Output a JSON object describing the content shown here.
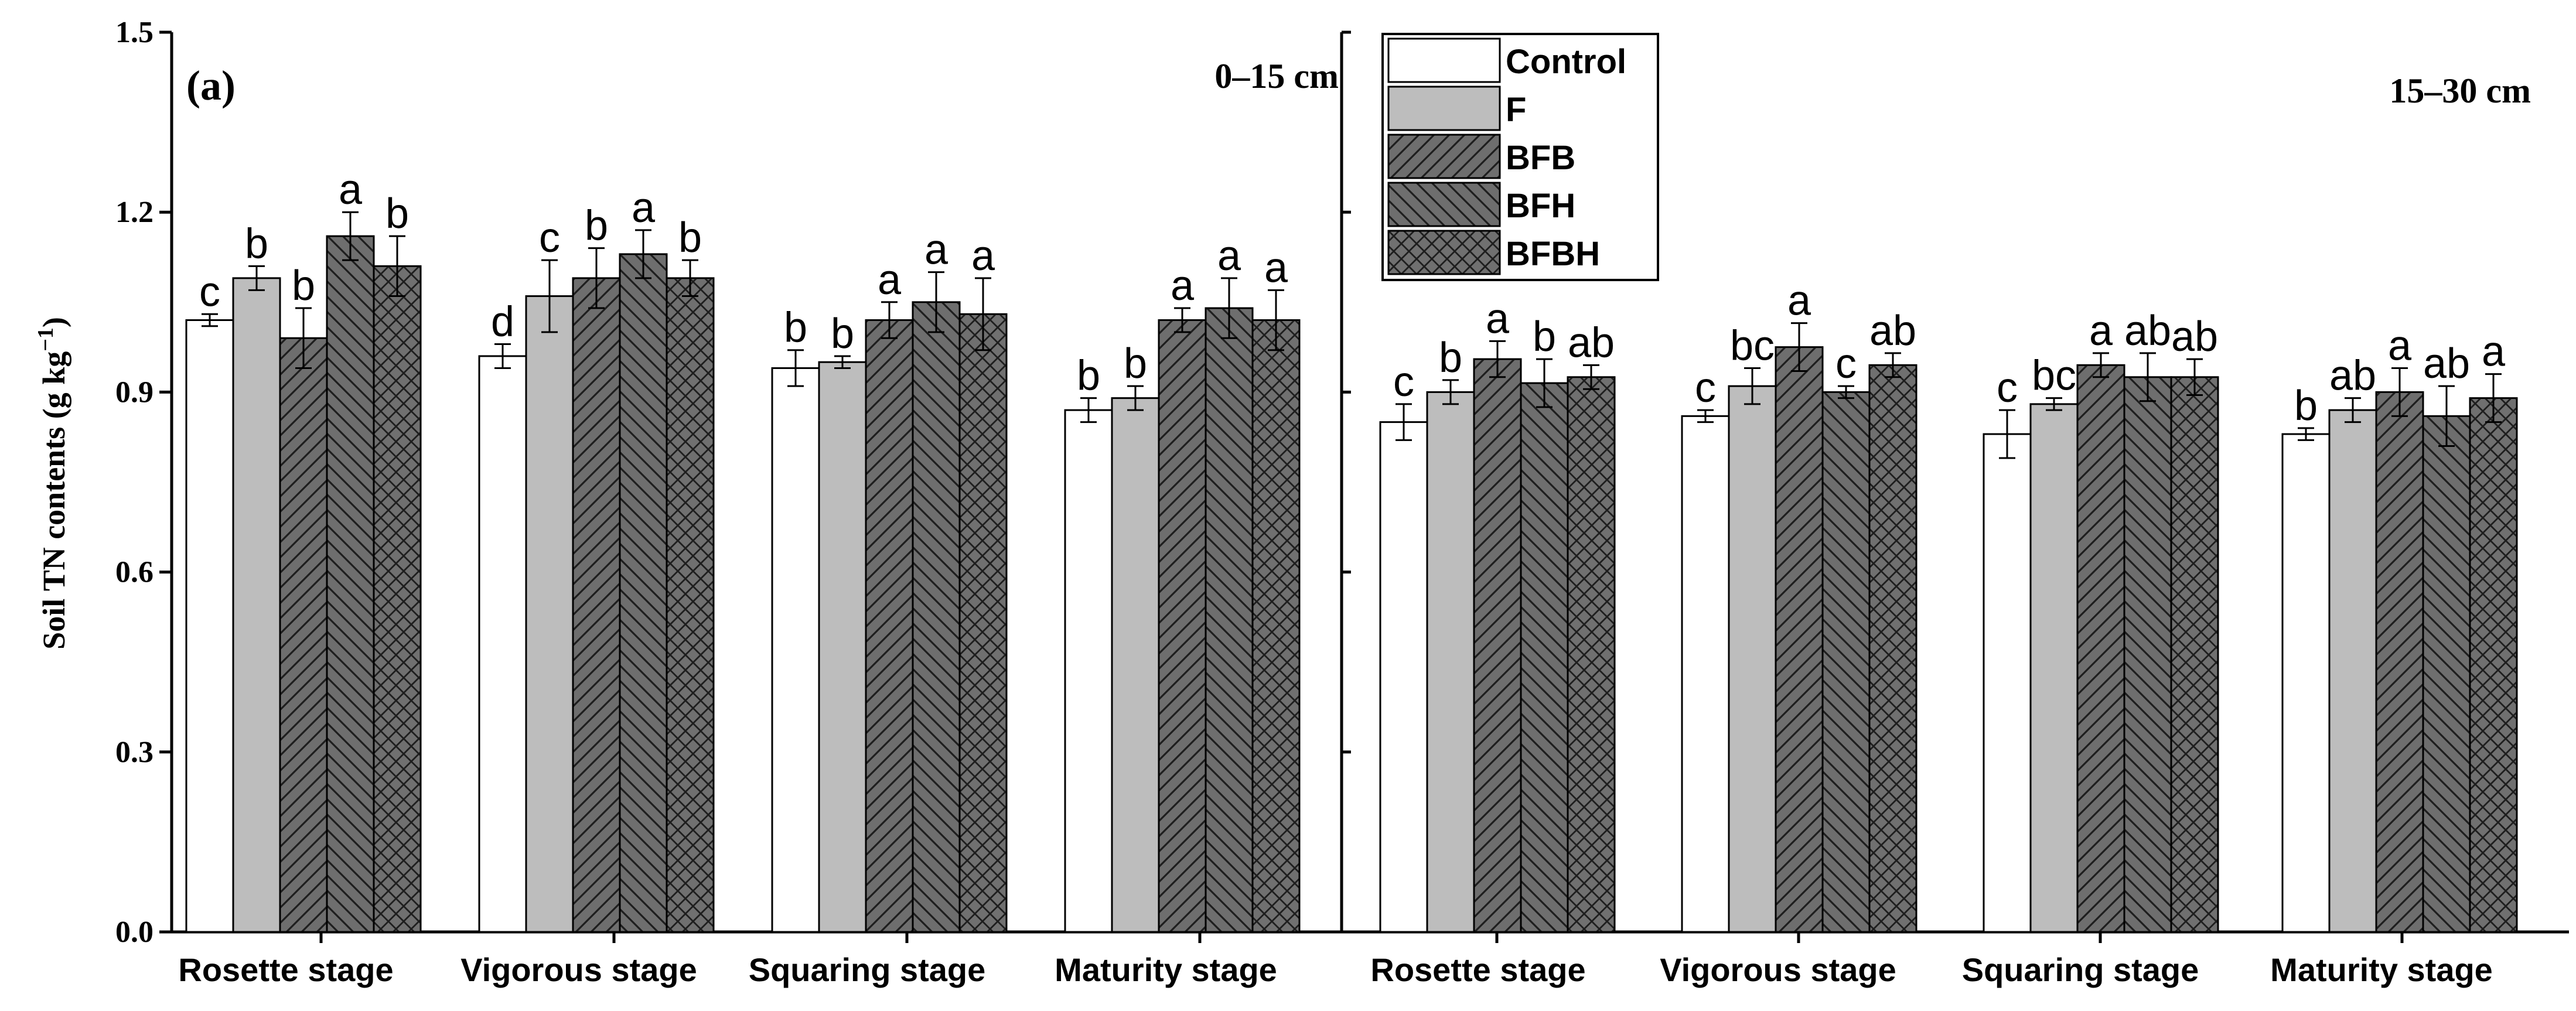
{
  "chart_data": {
    "type": "bar",
    "ylabel": "Soil TN contents (g kg",
    "ylabel_sup": "−1",
    "ylabel_end": ")",
    "ylim": [
      0.0,
      1.5
    ],
    "yticks": [
      "0.0",
      "0.3",
      "0.6",
      "0.9",
      "1.2",
      "1.5"
    ],
    "categories": [
      "Rosette stage",
      "Vigorous stage",
      "Squaring stage",
      "Maturity stage"
    ],
    "legend": {
      "position": "top-center",
      "entries": [
        {
          "name": "Control",
          "fill": "#ffffff",
          "pattern": "none"
        },
        {
          "name": "F",
          "fill": "#bdbdbd",
          "pattern": "none"
        },
        {
          "name": "BFB",
          "fill": "#707070",
          "pattern": "forward-diagonal"
        },
        {
          "name": "BFH",
          "fill": "#707070",
          "pattern": "back-diagonal"
        },
        {
          "name": "BFBH",
          "fill": "#707070",
          "pattern": "cross-hatch"
        }
      ]
    },
    "panels": [
      {
        "title": "(a)",
        "depth": "0–15 cm",
        "series": [
          {
            "name": "Control",
            "values": [
              1.02,
              0.96,
              0.94,
              0.87
            ],
            "errors": [
              0.01,
              0.02,
              0.03,
              0.02
            ],
            "letters": [
              "c",
              "d",
              "b",
              "b"
            ]
          },
          {
            "name": "F",
            "values": [
              1.09,
              1.06,
              0.95,
              0.89
            ],
            "errors": [
              0.02,
              0.06,
              0.01,
              0.02
            ],
            "letters": [
              "b",
              "c",
              "b",
              "b"
            ]
          },
          {
            "name": "BFB",
            "values": [
              0.99,
              1.09,
              1.02,
              1.02
            ],
            "errors": [
              0.05,
              0.05,
              0.03,
              0.02
            ],
            "letters": [
              "b",
              "b",
              "a",
              "a"
            ]
          },
          {
            "name": "BFH",
            "values": [
              1.16,
              1.13,
              1.05,
              1.04
            ],
            "errors": [
              0.04,
              0.04,
              0.05,
              0.05
            ],
            "letters": [
              "a",
              "a",
              "a",
              "a"
            ]
          },
          {
            "name": "BFBH",
            "values": [
              1.11,
              1.09,
              1.03,
              1.02
            ],
            "errors": [
              0.05,
              0.03,
              0.06,
              0.05
            ],
            "letters": [
              "b",
              "b",
              "a",
              "a"
            ]
          }
        ]
      },
      {
        "title": "",
        "depth": "15–30 cm",
        "series": [
          {
            "name": "Control",
            "values": [
              0.85,
              0.86,
              0.83,
              0.83
            ],
            "errors": [
              0.03,
              0.01,
              0.04,
              0.01
            ],
            "letters": [
              "c",
              "c",
              "c",
              "b"
            ]
          },
          {
            "name": "F",
            "values": [
              0.9,
              0.91,
              0.88,
              0.87
            ],
            "errors": [
              0.02,
              0.03,
              0.01,
              0.02
            ],
            "letters": [
              "b",
              "bc",
              "bc",
              "ab"
            ]
          },
          {
            "name": "BFB",
            "values": [
              0.955,
              0.975,
              0.945,
              0.9
            ],
            "errors": [
              0.03,
              0.04,
              0.02,
              0.04
            ],
            "letters": [
              "a",
              "a",
              "a",
              "a"
            ]
          },
          {
            "name": "BFH",
            "values": [
              0.915,
              0.9,
              0.925,
              0.86
            ],
            "errors": [
              0.04,
              0.01,
              0.04,
              0.05
            ],
            "letters": [
              "b",
              "c",
              "ab",
              "ab"
            ]
          },
          {
            "name": "BFBH",
            "values": [
              0.925,
              0.945,
              0.925,
              0.89
            ],
            "errors": [
              0.02,
              0.02,
              0.03,
              0.04
            ],
            "letters": [
              "ab",
              "ab",
              "ab",
              "a"
            ]
          }
        ]
      }
    ]
  }
}
